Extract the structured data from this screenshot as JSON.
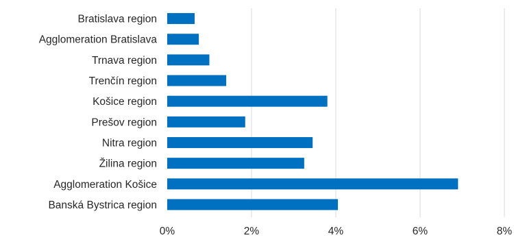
{
  "chart_data": {
    "type": "bar",
    "orientation": "horizontal",
    "categories": [
      "Bratislava region",
      "Agglomeration Bratislava",
      "Trnava region",
      "Trenčín region",
      "Košice region",
      "Prešov region",
      "Nitra region",
      "Žilina region",
      "Agglomeration Košice",
      "Banská Bystrica region"
    ],
    "values": [
      0.65,
      0.75,
      1.0,
      1.4,
      3.8,
      1.85,
      3.45,
      3.25,
      6.9,
      4.05
    ],
    "xlim": [
      0,
      8
    ],
    "xticks": [
      0,
      2,
      4,
      6,
      8
    ],
    "tick_suffix": "%",
    "grid": true,
    "legend": "none",
    "bar_color": "#0070C0",
    "title": "",
    "xlabel": "",
    "ylabel": ""
  }
}
